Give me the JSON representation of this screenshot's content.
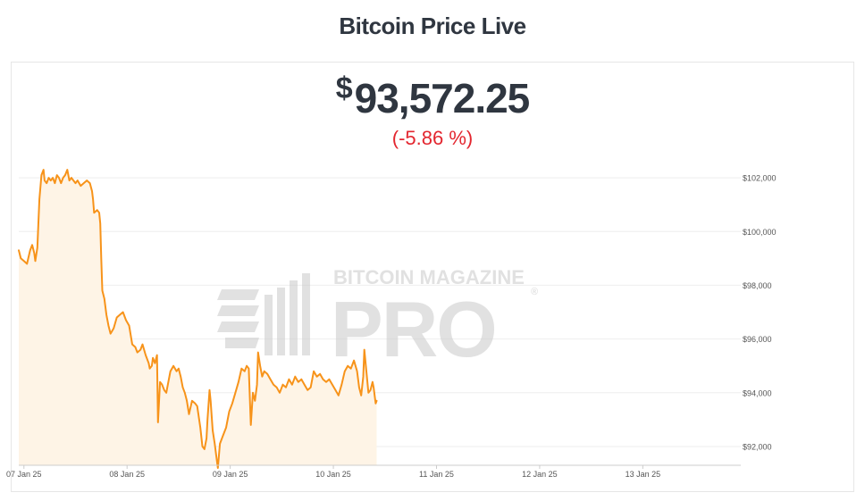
{
  "header": {
    "title": "Bitcoin Price Live"
  },
  "price": {
    "currency_symbol": "$",
    "value": "93,572.25",
    "change": "(-5.86 %)"
  },
  "watermark": {
    "line1": "BITCOIN MAGAZINE",
    "line2": "PRO",
    "mark": "®"
  },
  "colors": {
    "line": "#f7931a",
    "fill": "#fef4e6",
    "change_negative": "#e3262f",
    "text": "#2f3640"
  },
  "chart_data": {
    "type": "area",
    "series": [
      {
        "values": [
          [
            6.6,
            99.3
          ],
          [
            6.62,
            99.0
          ],
          [
            6.65,
            98.9
          ],
          [
            6.68,
            98.8
          ],
          [
            6.71,
            99.3
          ],
          [
            6.73,
            99.5
          ],
          [
            6.75,
            99.2
          ],
          [
            6.76,
            98.9
          ],
          [
            6.78,
            99.4
          ],
          [
            6.8,
            101.2
          ],
          [
            6.82,
            102.1
          ],
          [
            6.84,
            102.3
          ],
          [
            6.85,
            101.9
          ],
          [
            6.87,
            101.8
          ],
          [
            6.89,
            102.0
          ],
          [
            6.91,
            101.9
          ],
          [
            6.93,
            102.0
          ],
          [
            6.95,
            101.8
          ],
          [
            6.97,
            102.1
          ],
          [
            6.99,
            102.0
          ],
          [
            7.01,
            101.8
          ],
          [
            7.03,
            102.0
          ],
          [
            7.05,
            102.1
          ],
          [
            7.07,
            102.3
          ],
          [
            7.09,
            101.9
          ],
          [
            7.11,
            102.0
          ],
          [
            7.13,
            101.9
          ],
          [
            7.15,
            101.8
          ],
          [
            7.17,
            101.9
          ],
          [
            7.2,
            101.7
          ],
          [
            7.23,
            101.8
          ],
          [
            7.26,
            101.9
          ],
          [
            7.29,
            101.8
          ],
          [
            7.31,
            101.5
          ],
          [
            7.32,
            101.2
          ],
          [
            7.33,
            100.7
          ],
          [
            7.36,
            100.8
          ],
          [
            7.38,
            100.7
          ],
          [
            7.39,
            100.3
          ],
          [
            7.4,
            99.0
          ],
          [
            7.41,
            97.8
          ],
          [
            7.43,
            97.5
          ],
          [
            7.45,
            96.9
          ],
          [
            7.47,
            96.5
          ],
          [
            7.49,
            96.2
          ],
          [
            7.52,
            96.4
          ],
          [
            7.55,
            96.8
          ],
          [
            7.58,
            96.9
          ],
          [
            7.61,
            97.0
          ],
          [
            7.64,
            96.7
          ],
          [
            7.67,
            96.5
          ],
          [
            7.7,
            95.8
          ],
          [
            7.73,
            95.7
          ],
          [
            7.75,
            95.5
          ],
          [
            7.78,
            95.6
          ],
          [
            7.8,
            95.8
          ],
          [
            7.83,
            95.4
          ],
          [
            7.86,
            95.1
          ],
          [
            7.87,
            94.9
          ],
          [
            7.89,
            95.0
          ],
          [
            7.9,
            95.3
          ],
          [
            7.92,
            95.1
          ],
          [
            7.94,
            95.4
          ],
          [
            7.95,
            92.9
          ],
          [
            7.97,
            94.4
          ],
          [
            7.99,
            94.3
          ],
          [
            8.01,
            94.1
          ],
          [
            8.03,
            94.0
          ],
          [
            8.05,
            94.4
          ],
          [
            8.07,
            94.8
          ],
          [
            8.1,
            95.0
          ],
          [
            8.13,
            94.8
          ],
          [
            8.15,
            94.9
          ],
          [
            8.17,
            94.6
          ],
          [
            8.19,
            94.2
          ],
          [
            8.21,
            94.0
          ],
          [
            8.23,
            93.7
          ],
          [
            8.25,
            93.2
          ],
          [
            8.28,
            93.7
          ],
          [
            8.31,
            93.6
          ],
          [
            8.33,
            93.5
          ],
          [
            8.36,
            92.7
          ],
          [
            8.38,
            92.0
          ],
          [
            8.4,
            91.9
          ],
          [
            8.42,
            92.3
          ],
          [
            8.43,
            93.0
          ],
          [
            8.45,
            94.1
          ],
          [
            8.46,
            93.7
          ],
          [
            8.48,
            92.6
          ],
          [
            8.5,
            92.1
          ],
          [
            8.52,
            91.5
          ],
          [
            8.53,
            91.2
          ],
          [
            8.55,
            92.1
          ],
          [
            8.58,
            92.4
          ],
          [
            8.61,
            92.7
          ],
          [
            8.64,
            93.3
          ],
          [
            8.67,
            93.6
          ],
          [
            8.7,
            94.0
          ],
          [
            8.73,
            94.4
          ],
          [
            8.76,
            94.9
          ],
          [
            8.79,
            94.8
          ],
          [
            8.81,
            95.0
          ],
          [
            8.83,
            94.9
          ],
          [
            8.85,
            92.8
          ],
          [
            8.87,
            94.0
          ],
          [
            8.89,
            93.7
          ],
          [
            8.91,
            94.3
          ],
          [
            8.92,
            95.5
          ],
          [
            8.94,
            95.0
          ],
          [
            8.96,
            94.6
          ],
          [
            8.98,
            94.8
          ],
          [
            9.01,
            94.7
          ],
          [
            9.04,
            94.5
          ],
          [
            9.07,
            94.3
          ],
          [
            9.1,
            94.2
          ],
          [
            9.13,
            94.0
          ],
          [
            9.16,
            94.3
          ],
          [
            9.19,
            94.2
          ],
          [
            9.22,
            94.5
          ],
          [
            9.25,
            94.3
          ],
          [
            9.28,
            94.6
          ],
          [
            9.31,
            94.4
          ],
          [
            9.34,
            94.5
          ],
          [
            9.37,
            94.3
          ],
          [
            9.4,
            94.1
          ],
          [
            9.43,
            94.2
          ],
          [
            9.46,
            94.8
          ],
          [
            9.49,
            94.6
          ],
          [
            9.52,
            94.7
          ],
          [
            9.55,
            94.5
          ],
          [
            9.58,
            94.4
          ],
          [
            9.61,
            94.5
          ],
          [
            9.64,
            94.3
          ],
          [
            9.67,
            94.1
          ],
          [
            9.7,
            93.9
          ],
          [
            9.73,
            94.3
          ],
          [
            9.76,
            94.8
          ],
          [
            9.79,
            95.0
          ],
          [
            9.82,
            94.9
          ],
          [
            9.85,
            95.2
          ],
          [
            9.88,
            94.8
          ],
          [
            9.9,
            94.2
          ],
          [
            9.92,
            93.9
          ],
          [
            9.94,
            94.6
          ],
          [
            9.95,
            95.6
          ],
          [
            9.97,
            94.8
          ],
          [
            9.99,
            94.0
          ],
          [
            10.01,
            94.1
          ],
          [
            10.03,
            94.4
          ],
          [
            10.04,
            94.2
          ],
          [
            10.06,
            93.6
          ],
          [
            10.07,
            93.7
          ]
        ]
      }
    ],
    "x_ticks": [
      {
        "value": 6.65,
        "label": "07 Jan 25"
      },
      {
        "value": 7.65,
        "label": "08 Jan 25"
      },
      {
        "value": 8.65,
        "label": "09 Jan 25"
      },
      {
        "value": 9.65,
        "label": "10 Jan 25"
      },
      {
        "value": 10.65,
        "label": "11 Jan 25"
      },
      {
        "value": 11.65,
        "label": "12 Jan 25"
      },
      {
        "value": 12.65,
        "label": "13 Jan 25"
      }
    ],
    "y_ticks": [
      {
        "value": 92,
        "label": "$92,000"
      },
      {
        "value": 94,
        "label": "$94,000"
      },
      {
        "value": 96,
        "label": "$96,000"
      },
      {
        "value": 98,
        "label": "$98,000"
      },
      {
        "value": 100,
        "label": "$100,000"
      },
      {
        "value": 102,
        "label": "$102,000"
      }
    ],
    "xlim": [
      6.6,
      13.6
    ],
    "ylim": [
      91.3,
      102.9
    ],
    "grid": "horizontal"
  }
}
